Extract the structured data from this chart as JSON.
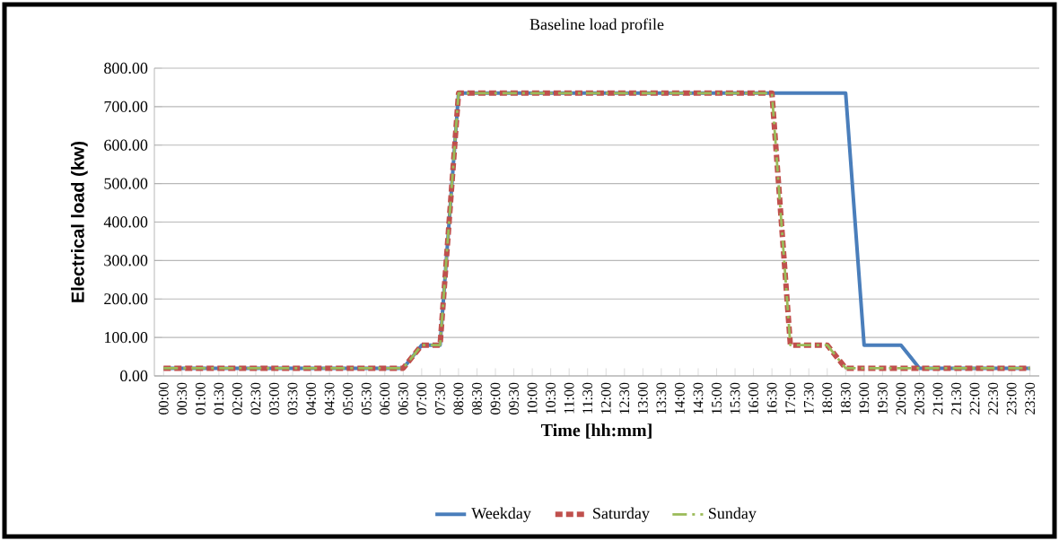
{
  "chart_data": {
    "type": "line",
    "title": "Baseline load profile",
    "xlabel": "Time [hh:mm]",
    "ylabel": "Electrical load (kw)",
    "categories": [
      "00:00",
      "00:30",
      "01:00",
      "01:30",
      "02:00",
      "02:30",
      "03:00",
      "03:30",
      "04:00",
      "04:30",
      "05:00",
      "05:30",
      "06:00",
      "06:30",
      "07:00",
      "07:30",
      "08:00",
      "08:30",
      "09:00",
      "09:30",
      "10:00",
      "10:30",
      "11:00",
      "11:30",
      "12:00",
      "12:30",
      "13:00",
      "13:30",
      "14:00",
      "14:30",
      "15:00",
      "15:30",
      "16:00",
      "16:30",
      "17:00",
      "17:30",
      "18:00",
      "18:30",
      "19:00",
      "19:30",
      "20:00",
      "20:30",
      "21:00",
      "21:30",
      "22:00",
      "22:30",
      "23:00",
      "23:30"
    ],
    "series": [
      {
        "name": "Weekday",
        "color": "#4a7ebb",
        "line_style": "solid",
        "values": [
          20,
          20,
          20,
          20,
          20,
          20,
          20,
          20,
          20,
          20,
          20,
          20,
          20,
          20,
          80,
          80,
          735,
          735,
          735,
          735,
          735,
          735,
          735,
          735,
          735,
          735,
          735,
          735,
          735,
          735,
          735,
          735,
          735,
          735,
          735,
          735,
          735,
          735,
          80,
          80,
          80,
          20,
          20,
          20,
          20,
          20,
          20,
          20
        ]
      },
      {
        "name": "Saturday",
        "color": "#c0504d",
        "line_style": "dashed",
        "values": [
          20,
          20,
          20,
          20,
          20,
          20,
          20,
          20,
          20,
          20,
          20,
          20,
          20,
          20,
          80,
          80,
          735,
          735,
          735,
          735,
          735,
          735,
          735,
          735,
          735,
          735,
          735,
          735,
          735,
          735,
          735,
          735,
          735,
          735,
          80,
          80,
          80,
          20,
          20,
          20,
          20,
          20,
          20,
          20,
          20,
          20,
          20,
          20
        ]
      },
      {
        "name": "Sunday",
        "color": "#9bbb59",
        "line_style": "dashdot",
        "values": [
          20,
          20,
          20,
          20,
          20,
          20,
          20,
          20,
          20,
          20,
          20,
          20,
          20,
          20,
          80,
          80,
          735,
          735,
          735,
          735,
          735,
          735,
          735,
          735,
          735,
          735,
          735,
          735,
          735,
          735,
          735,
          735,
          735,
          735,
          80,
          80,
          80,
          20,
          20,
          20,
          20,
          20,
          20,
          20,
          20,
          20,
          20,
          20
        ]
      }
    ],
    "ylim": [
      0,
      800
    ],
    "yticks": [
      {
        "value": 0,
        "label": "0.00"
      },
      {
        "value": 100,
        "label": "100.00"
      },
      {
        "value": 200,
        "label": "200.00"
      },
      {
        "value": 300,
        "label": "300.00"
      },
      {
        "value": 400,
        "label": "400.00"
      },
      {
        "value": 500,
        "label": "500.00"
      },
      {
        "value": 600,
        "label": "600.00"
      },
      {
        "value": 700,
        "label": "700.00"
      },
      {
        "value": 800,
        "label": "800.00"
      }
    ],
    "grid": "y",
    "legend": "bottom"
  }
}
